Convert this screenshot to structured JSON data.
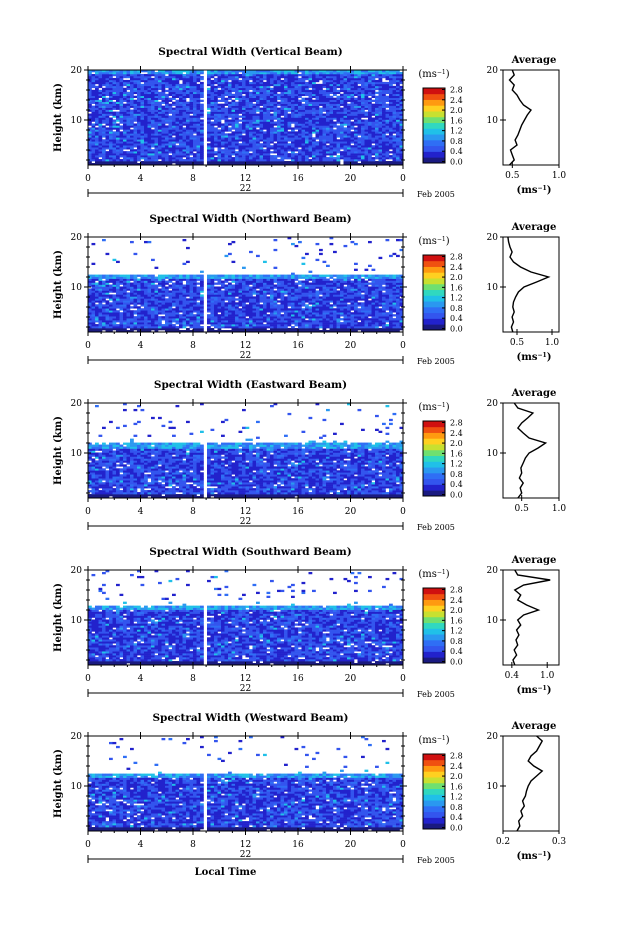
{
  "figure": {
    "xlabel_bottom": "Local Time",
    "date_label": "Feb 2005",
    "day_label": "22"
  },
  "colors": {
    "colormap": [
      "#1a1a80",
      "#2222cc",
      "#3355ee",
      "#2f6ef5",
      "#2a98f0",
      "#20c0e8",
      "#30d8c0",
      "#6fe070",
      "#c8e030",
      "#ffd020",
      "#ff9a10",
      "#f05010",
      "#d01010"
    ],
    "gap": "#ffffff",
    "line": "#000000"
  },
  "chart_data": [
    {
      "type": "heatmap",
      "title": "Spectral Width (Vertical Beam)",
      "ylabel": "Height (km)",
      "x_ticks": [
        "0",
        "4",
        "8",
        "12",
        "16",
        "20",
        "0"
      ],
      "y_ticks": [
        "10",
        "20"
      ],
      "xlim": [
        0,
        24
      ],
      "ylim": [
        1,
        20
      ],
      "data_gap_hours": [
        8.9,
        9.2
      ],
      "echo_top_km": 20,
      "colorbar": {
        "label": "(ms⁻¹)",
        "ticks": [
          "0.0",
          "0.4",
          "0.8",
          "1.2",
          "1.6",
          "2.0",
          "2.4",
          "2.8"
        ],
        "range": [
          0,
          2.8
        ]
      },
      "profile": {
        "title": "Average",
        "xlabel": "(ms⁻¹)",
        "x_ticks": [
          "0.5",
          "1.0"
        ],
        "xlim": [
          0.4,
          1.0
        ],
        "heights": [
          1,
          2,
          3,
          4,
          5,
          6,
          7,
          8,
          9,
          10,
          11,
          12,
          13,
          14,
          15,
          16,
          17,
          18,
          19,
          20
        ],
        "values": [
          0.47,
          0.52,
          0.5,
          0.48,
          0.55,
          0.53,
          0.56,
          0.58,
          0.6,
          0.63,
          0.66,
          0.7,
          0.62,
          0.58,
          0.55,
          0.5,
          0.52,
          0.47,
          0.52,
          0.5
        ]
      }
    },
    {
      "type": "heatmap",
      "title": "Spectral Width (Northward Beam)",
      "ylabel": "Height (km)",
      "x_ticks": [
        "0",
        "4",
        "8",
        "12",
        "16",
        "20",
        "0"
      ],
      "y_ticks": [
        "10",
        "20"
      ],
      "xlim": [
        0,
        24
      ],
      "ylim": [
        1,
        20
      ],
      "data_gap_hours": [
        8.9,
        9.2
      ],
      "echo_top_km": 12.5,
      "colorbar": {
        "label": "(ms⁻¹)",
        "ticks": [
          "0.0",
          "0.4",
          "0.8",
          "1.2",
          "1.6",
          "2.0",
          "2.4",
          "2.8"
        ],
        "range": [
          0,
          2.8
        ]
      },
      "profile": {
        "title": "Average",
        "xlabel": "(ms⁻¹)",
        "x_ticks": [
          "0.5",
          "1.0"
        ],
        "xlim": [
          0.3,
          1.1
        ],
        "heights": [
          1,
          2,
          3,
          4,
          5,
          6,
          7,
          8,
          9,
          10,
          11,
          12,
          13,
          14,
          15,
          16,
          17,
          18,
          19,
          20
        ],
        "values": [
          0.44,
          0.42,
          0.45,
          0.43,
          0.46,
          0.44,
          0.45,
          0.48,
          0.52,
          0.6,
          0.78,
          0.95,
          0.7,
          0.55,
          0.45,
          0.4,
          0.43,
          0.4,
          0.38,
          0.37
        ]
      }
    },
    {
      "type": "heatmap",
      "title": "Spectral Width (Eastward Beam)",
      "ylabel": "Height (km)",
      "x_ticks": [
        "0",
        "4",
        "8",
        "12",
        "16",
        "20",
        "0"
      ],
      "y_ticks": [
        "10",
        "20"
      ],
      "xlim": [
        0,
        24
      ],
      "ylim": [
        1,
        20
      ],
      "data_gap_hours": [
        8.9,
        9.2
      ],
      "echo_top_km": 12.0,
      "colorbar": {
        "label": "(ms⁻¹)",
        "ticks": [
          "0.0",
          "0.4",
          "0.8",
          "1.2",
          "1.6",
          "2.0",
          "2.4",
          "2.8"
        ],
        "range": [
          0,
          2.8
        ]
      },
      "profile": {
        "title": "Average",
        "xlabel": "",
        "x_ticks": [
          "0.5",
          "1.0"
        ],
        "xlim": [
          0.25,
          1.0
        ],
        "heights": [
          1,
          2,
          3,
          4,
          5,
          6,
          7,
          8,
          9,
          10,
          11,
          12,
          13,
          14,
          15,
          16,
          17,
          18,
          19,
          20
        ],
        "values": [
          0.45,
          0.5,
          0.48,
          0.52,
          0.47,
          0.5,
          0.49,
          0.52,
          0.55,
          0.6,
          0.72,
          0.82,
          0.6,
          0.52,
          0.45,
          0.5,
          0.58,
          0.65,
          0.45,
          0.4
        ]
      }
    },
    {
      "type": "heatmap",
      "title": "Spectral Width (Southward Beam)",
      "ylabel": "Height (km)",
      "x_ticks": [
        "0",
        "4",
        "8",
        "12",
        "16",
        "20",
        "0"
      ],
      "y_ticks": [
        "10",
        "20"
      ],
      "xlim": [
        0,
        24
      ],
      "ylim": [
        1,
        20
      ],
      "data_gap_hours": [
        8.9,
        9.2
      ],
      "echo_top_km": 13.0,
      "colorbar": {
        "label": "(ms⁻¹)",
        "ticks": [
          "0.0",
          "0.4",
          "0.8",
          "1.2",
          "1.6",
          "2.0",
          "2.4",
          "2.8"
        ],
        "range": [
          0,
          2.8
        ]
      },
      "profile": {
        "title": "Average",
        "xlabel": "(ms⁻¹)",
        "x_ticks": [
          "0.4",
          "1.0"
        ],
        "xlim": [
          0.25,
          1.2
        ],
        "heights": [
          1,
          2,
          3,
          4,
          5,
          6,
          7,
          8,
          9,
          10,
          11,
          12,
          13,
          14,
          15,
          16,
          17,
          18,
          19,
          20
        ],
        "values": [
          0.45,
          0.42,
          0.48,
          0.44,
          0.5,
          0.47,
          0.52,
          0.48,
          0.55,
          0.5,
          0.6,
          0.85,
          0.65,
          0.5,
          0.55,
          0.45,
          0.6,
          1.05,
          0.5,
          0.45
        ]
      }
    },
    {
      "type": "heatmap",
      "title": "Spectral Width (Westward Beam)",
      "ylabel": "Height (km)",
      "x_ticks": [
        "0",
        "4",
        "8",
        "12",
        "16",
        "20",
        "0"
      ],
      "y_ticks": [
        "10",
        "20"
      ],
      "xlim": [
        0,
        24
      ],
      "ylim": [
        1,
        20
      ],
      "data_gap_hours": [
        8.9,
        9.2
      ],
      "echo_top_km": 12.5,
      "colorbar": {
        "label": "(ms⁻¹)",
        "ticks": [
          "0.0",
          "0.4",
          "0.8",
          "1.2",
          "1.6",
          "2.0",
          "2.4",
          "2.8"
        ],
        "range": [
          0,
          2.8
        ]
      },
      "profile": {
        "title": "Average",
        "xlabel": "(ms⁻¹)",
        "x_ticks": [
          "0.2",
          "0.3"
        ],
        "xlim": [
          0.2,
          0.3
        ],
        "heights": [
          1,
          2,
          3,
          4,
          5,
          6,
          7,
          8,
          9,
          10,
          11,
          12,
          13,
          14,
          15,
          16,
          17,
          18,
          19,
          20
        ],
        "values": [
          0.225,
          0.23,
          0.228,
          0.235,
          0.232,
          0.238,
          0.235,
          0.24,
          0.242,
          0.245,
          0.25,
          0.26,
          0.27,
          0.255,
          0.245,
          0.25,
          0.26,
          0.265,
          0.27,
          0.26
        ]
      }
    }
  ]
}
